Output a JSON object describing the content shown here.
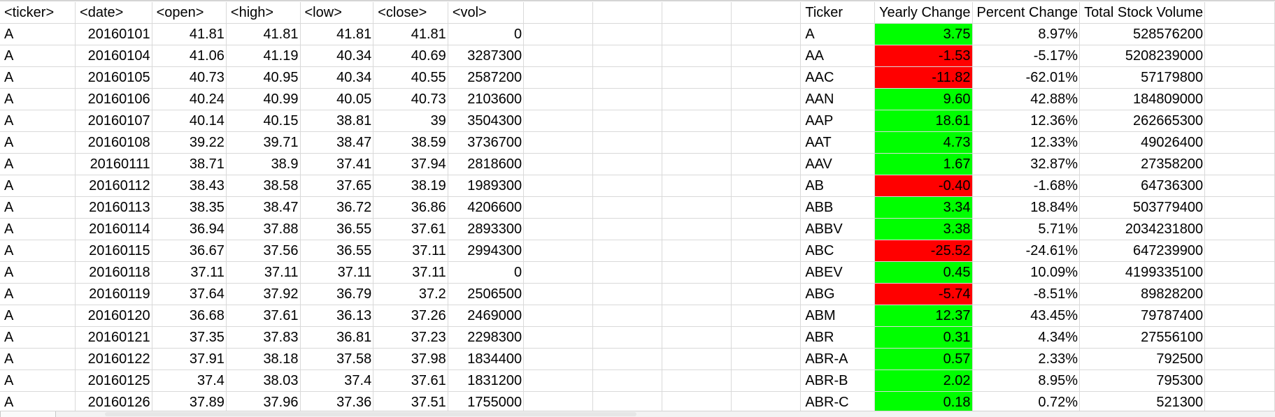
{
  "left_table": {
    "headers": [
      "<ticker>",
      "<date>",
      "<open>",
      "<high>",
      "<low>",
      "<close>",
      "<vol>"
    ],
    "rows": [
      [
        "A",
        "20160101",
        "41.81",
        "41.81",
        "41.81",
        "41.81",
        "0"
      ],
      [
        "A",
        "20160104",
        "41.06",
        "41.19",
        "40.34",
        "40.69",
        "3287300"
      ],
      [
        "A",
        "20160105",
        "40.73",
        "40.95",
        "40.34",
        "40.55",
        "2587200"
      ],
      [
        "A",
        "20160106",
        "40.24",
        "40.99",
        "40.05",
        "40.73",
        "2103600"
      ],
      [
        "A",
        "20160107",
        "40.14",
        "40.15",
        "38.81",
        "39",
        "3504300"
      ],
      [
        "A",
        "20160108",
        "39.22",
        "39.71",
        "38.47",
        "38.59",
        "3736700"
      ],
      [
        "A",
        "20160111",
        "38.71",
        "38.9",
        "37.41",
        "37.94",
        "2818600"
      ],
      [
        "A",
        "20160112",
        "38.43",
        "38.58",
        "37.65",
        "38.19",
        "1989300"
      ],
      [
        "A",
        "20160113",
        "38.35",
        "38.47",
        "36.72",
        "36.86",
        "4206600"
      ],
      [
        "A",
        "20160114",
        "36.94",
        "37.88",
        "36.55",
        "37.61",
        "2893300"
      ],
      [
        "A",
        "20160115",
        "36.67",
        "37.56",
        "36.55",
        "37.11",
        "2994300"
      ],
      [
        "A",
        "20160118",
        "37.11",
        "37.11",
        "37.11",
        "37.11",
        "0"
      ],
      [
        "A",
        "20160119",
        "37.64",
        "37.92",
        "36.79",
        "37.2",
        "2506500"
      ],
      [
        "A",
        "20160120",
        "36.68",
        "37.61",
        "36.13",
        "37.26",
        "2469000"
      ],
      [
        "A",
        "20160121",
        "37.35",
        "37.83",
        "36.81",
        "37.23",
        "2298300"
      ],
      [
        "A",
        "20160122",
        "37.91",
        "38.18",
        "37.58",
        "37.98",
        "1834400"
      ],
      [
        "A",
        "20160125",
        "37.4",
        "38.03",
        "37.4",
        "37.61",
        "1831200"
      ],
      [
        "A",
        "20160126",
        "37.89",
        "37.96",
        "37.36",
        "37.51",
        "1755000"
      ]
    ]
  },
  "right_table": {
    "headers": [
      "Ticker",
      "Yearly Change",
      "Percent Change",
      "Total Stock Volume"
    ],
    "rows": [
      [
        "A",
        "3.75",
        "8.97%",
        "528576200"
      ],
      [
        "AA",
        "-1.53",
        "-5.17%",
        "5208239000"
      ],
      [
        "AAC",
        "-11.82",
        "-62.01%",
        "57179800"
      ],
      [
        "AAN",
        "9.60",
        "42.88%",
        "184809000"
      ],
      [
        "AAP",
        "18.61",
        "12.36%",
        "262665300"
      ],
      [
        "AAT",
        "4.73",
        "12.33%",
        "49026400"
      ],
      [
        "AAV",
        "1.67",
        "32.87%",
        "27358200"
      ],
      [
        "AB",
        "-0.40",
        "-1.68%",
        "64736300"
      ],
      [
        "ABB",
        "3.34",
        "18.84%",
        "503779400"
      ],
      [
        "ABBV",
        "3.38",
        "5.71%",
        "2034231800"
      ],
      [
        "ABC",
        "-25.52",
        "-24.61%",
        "647239900"
      ],
      [
        "ABEV",
        "0.45",
        "10.09%",
        "4199335100"
      ],
      [
        "ABG",
        "-5.74",
        "-8.51%",
        "89828200"
      ],
      [
        "ABM",
        "12.37",
        "43.45%",
        "79787400"
      ],
      [
        "ABR",
        "0.31",
        "4.34%",
        "27556100"
      ],
      [
        "ABR-A",
        "0.57",
        "2.33%",
        "792500"
      ],
      [
        "ABR-B",
        "2.02",
        "8.95%",
        "795300"
      ],
      [
        "ABR-C",
        "0.18",
        "0.72%",
        "521300"
      ]
    ]
  },
  "colors": {
    "positive_fill": "#00ff00",
    "negative_fill": "#ff0000",
    "gridline": "#d9d9d9"
  }
}
